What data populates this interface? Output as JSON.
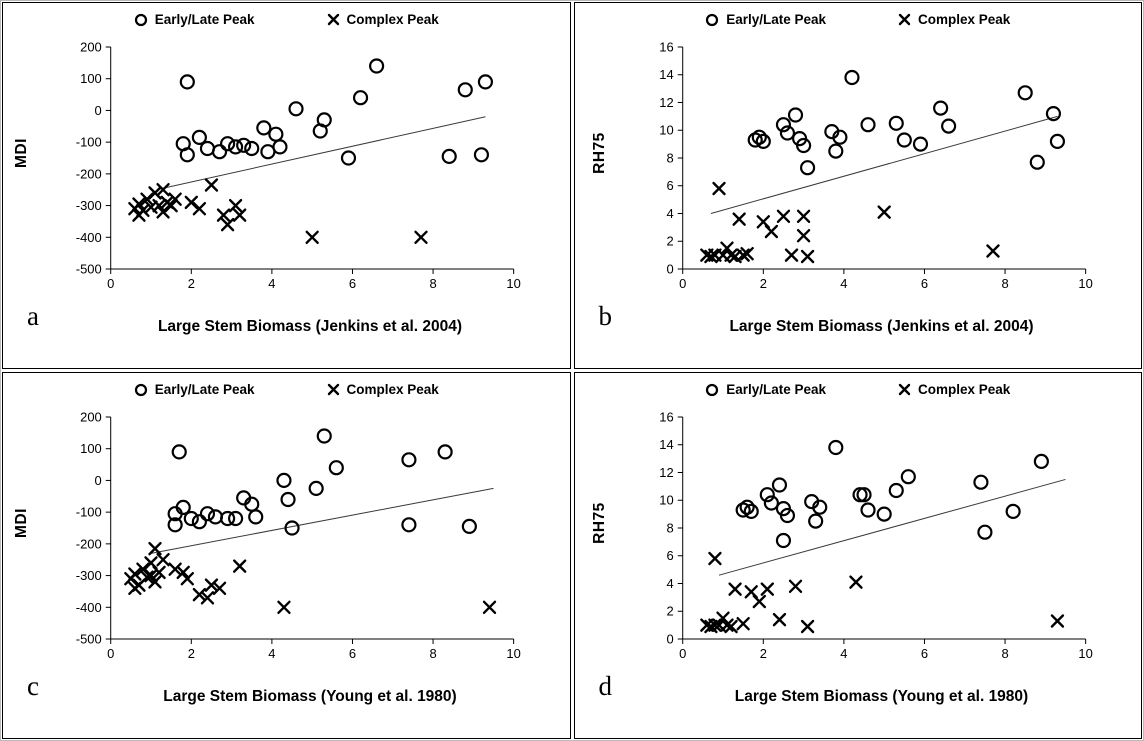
{
  "figure": {
    "background": "#ffffff",
    "panel_border": "#000000",
    "marker_color": "#000000",
    "trendline_color": "#3a3a3a"
  },
  "chart_data": [
    {
      "type": "scatter",
      "letter": "a",
      "xlabel": "Large Stem Biomass (Jenkins et al. 2004)",
      "ylabel": "MDI",
      "xlim": [
        0,
        10
      ],
      "ylim": [
        -500,
        200
      ],
      "xticks": [
        0,
        2,
        4,
        6,
        8,
        10
      ],
      "yticks": [
        200,
        100,
        0,
        -100,
        -200,
        -300,
        -400,
        -500
      ],
      "legend": [
        "Early/Late Peak",
        "Complex Peak"
      ],
      "grid": false,
      "series": [
        {
          "name": "Early/Late Peak",
          "marker": "circle",
          "points": [
            [
              1.9,
              90
            ],
            [
              6.6,
              140
            ],
            [
              6.2,
              40
            ],
            [
              4.6,
              5
            ],
            [
              8.8,
              65
            ],
            [
              9.3,
              90
            ],
            [
              5.3,
              -30
            ],
            [
              5.2,
              -65
            ],
            [
              3.8,
              -55
            ],
            [
              4.1,
              -75
            ],
            [
              3.5,
              -120
            ],
            [
              4.2,
              -115
            ],
            [
              2.2,
              -85
            ],
            [
              2.4,
              -120
            ],
            [
              1.8,
              -105
            ],
            [
              1.9,
              -140
            ],
            [
              2.9,
              -105
            ],
            [
              3.1,
              -115
            ],
            [
              2.7,
              -130
            ],
            [
              3.3,
              -110
            ],
            [
              3.9,
              -130
            ],
            [
              5.9,
              -150
            ],
            [
              8.4,
              -145
            ],
            [
              9.2,
              -140
            ]
          ]
        },
        {
          "name": "Complex Peak",
          "marker": "x",
          "points": [
            [
              0.6,
              -310
            ],
            [
              0.7,
              -295
            ],
            [
              0.7,
              -330
            ],
            [
              0.8,
              -315
            ],
            [
              0.9,
              -280
            ],
            [
              1.0,
              -305
            ],
            [
              1.1,
              -260
            ],
            [
              1.2,
              -300
            ],
            [
              1.3,
              -320
            ],
            [
              1.3,
              -250
            ],
            [
              1.4,
              -290
            ],
            [
              1.5,
              -300
            ],
            [
              1.6,
              -280
            ],
            [
              2.0,
              -290
            ],
            [
              2.2,
              -310
            ],
            [
              2.5,
              -235
            ],
            [
              2.8,
              -330
            ],
            [
              2.9,
              -360
            ],
            [
              3.1,
              -300
            ],
            [
              3.2,
              -330
            ],
            [
              5.0,
              -400
            ],
            [
              7.7,
              -400
            ]
          ]
        }
      ],
      "trendline": [
        [
          1.2,
          -248
        ],
        [
          9.3,
          -20
        ]
      ]
    },
    {
      "type": "scatter",
      "letter": "b",
      "xlabel": "Large Stem Biomass (Jenkins et al. 2004)",
      "ylabel": "RH75",
      "xlim": [
        0,
        10
      ],
      "ylim": [
        0,
        16
      ],
      "xticks": [
        0,
        2,
        4,
        6,
        8,
        10
      ],
      "yticks": [
        16,
        14,
        12,
        10,
        8,
        6,
        4,
        2,
        0
      ],
      "legend": [
        "Early/Late Peak",
        "Complex Peak"
      ],
      "grid": false,
      "series": [
        {
          "name": "Early/Late Peak",
          "marker": "circle",
          "points": [
            [
              1.8,
              9.3
            ],
            [
              1.9,
              9.5
            ],
            [
              2.0,
              9.2
            ],
            [
              2.5,
              10.4
            ],
            [
              2.6,
              9.8
            ],
            [
              2.8,
              11.1
            ],
            [
              2.9,
              9.4
            ],
            [
              3.0,
              8.9
            ],
            [
              3.1,
              7.3
            ],
            [
              3.7,
              9.9
            ],
            [
              3.8,
              8.5
            ],
            [
              3.9,
              9.5
            ],
            [
              4.2,
              13.8
            ],
            [
              4.6,
              10.4
            ],
            [
              5.3,
              10.5
            ],
            [
              5.5,
              9.3
            ],
            [
              5.9,
              9.0
            ],
            [
              6.4,
              11.6
            ],
            [
              6.6,
              10.3
            ],
            [
              8.5,
              12.7
            ],
            [
              8.8,
              7.7
            ],
            [
              9.2,
              11.2
            ],
            [
              9.3,
              9.2
            ]
          ]
        },
        {
          "name": "Complex Peak",
          "marker": "x",
          "points": [
            [
              0.6,
              1.0
            ],
            [
              0.7,
              0.9
            ],
            [
              0.8,
              1.0
            ],
            [
              0.9,
              5.8
            ],
            [
              1.0,
              1.0
            ],
            [
              1.1,
              1.5
            ],
            [
              1.2,
              1.0
            ],
            [
              1.3,
              0.9
            ],
            [
              1.4,
              3.6
            ],
            [
              1.5,
              1.0
            ],
            [
              1.6,
              1.1
            ],
            [
              2.0,
              3.4
            ],
            [
              2.2,
              2.7
            ],
            [
              2.5,
              3.8
            ],
            [
              2.7,
              1.0
            ],
            [
              3.0,
              3.8
            ],
            [
              3.0,
              2.4
            ],
            [
              3.1,
              0.9
            ],
            [
              5.0,
              4.1
            ],
            [
              7.7,
              1.3
            ]
          ]
        }
      ],
      "trendline": [
        [
          0.7,
          4.0
        ],
        [
          9.3,
          11.0
        ]
      ]
    },
    {
      "type": "scatter",
      "letter": "c",
      "xlabel": "Large Stem Biomass (Young et al. 1980)",
      "ylabel": "MDI",
      "xlim": [
        0,
        10
      ],
      "ylim": [
        -500,
        200
      ],
      "xticks": [
        0,
        2,
        4,
        6,
        8,
        10
      ],
      "yticks": [
        200,
        100,
        0,
        -100,
        -200,
        -300,
        -400,
        -500
      ],
      "legend": [
        "Early/Late Peak",
        "Complex Peak"
      ],
      "grid": false,
      "series": [
        {
          "name": "Early/Late Peak",
          "marker": "circle",
          "points": [
            [
              1.7,
              90
            ],
            [
              5.3,
              140
            ],
            [
              5.6,
              40
            ],
            [
              4.3,
              0
            ],
            [
              7.4,
              65
            ],
            [
              8.3,
              90
            ],
            [
              5.1,
              -25
            ],
            [
              4.4,
              -60
            ],
            [
              3.3,
              -55
            ],
            [
              3.5,
              -75
            ],
            [
              2.9,
              -120
            ],
            [
              3.6,
              -115
            ],
            [
              1.8,
              -85
            ],
            [
              2.0,
              -120
            ],
            [
              1.6,
              -105
            ],
            [
              1.6,
              -140
            ],
            [
              2.4,
              -105
            ],
            [
              2.6,
              -115
            ],
            [
              2.2,
              -130
            ],
            [
              3.1,
              -120
            ],
            [
              4.5,
              -150
            ],
            [
              7.4,
              -140
            ],
            [
              8.9,
              -145
            ]
          ]
        },
        {
          "name": "Complex Peak",
          "marker": "x",
          "points": [
            [
              0.5,
              -310
            ],
            [
              0.6,
              -295
            ],
            [
              0.6,
              -340
            ],
            [
              0.7,
              -330
            ],
            [
              0.8,
              -280
            ],
            [
              0.9,
              -305
            ],
            [
              1.0,
              -260
            ],
            [
              1.0,
              -300
            ],
            [
              1.1,
              -320
            ],
            [
              1.1,
              -215
            ],
            [
              1.2,
              -290
            ],
            [
              1.3,
              -250
            ],
            [
              1.6,
              -280
            ],
            [
              1.8,
              -290
            ],
            [
              1.9,
              -310
            ],
            [
              2.2,
              -360
            ],
            [
              2.4,
              -370
            ],
            [
              2.5,
              -330
            ],
            [
              2.7,
              -340
            ],
            [
              3.2,
              -270
            ],
            [
              4.3,
              -400
            ],
            [
              9.4,
              -400
            ]
          ]
        }
      ],
      "trendline": [
        [
          1.0,
          -230
        ],
        [
          9.5,
          -25
        ]
      ]
    },
    {
      "type": "scatter",
      "letter": "d",
      "xlabel": "Large Stem Biomass (Young et al. 1980)",
      "ylabel": "RH75",
      "xlim": [
        0,
        10
      ],
      "ylim": [
        0,
        16
      ],
      "xticks": [
        0,
        2,
        4,
        6,
        8,
        10
      ],
      "yticks": [
        16,
        14,
        12,
        10,
        8,
        6,
        4,
        2,
        0
      ],
      "legend": [
        "Early/Late Peak",
        "Complex Peak"
      ],
      "grid": false,
      "series": [
        {
          "name": "Early/Late Peak",
          "marker": "circle",
          "points": [
            [
              1.5,
              9.3
            ],
            [
              1.6,
              9.5
            ],
            [
              1.7,
              9.2
            ],
            [
              2.1,
              10.4
            ],
            [
              2.2,
              9.8
            ],
            [
              2.4,
              11.1
            ],
            [
              2.5,
              9.4
            ],
            [
              2.6,
              8.9
            ],
            [
              2.5,
              7.1
            ],
            [
              3.2,
              9.9
            ],
            [
              3.3,
              8.5
            ],
            [
              3.4,
              9.5
            ],
            [
              3.8,
              13.8
            ],
            [
              4.4,
              10.4
            ],
            [
              4.5,
              10.4
            ],
            [
              4.6,
              9.3
            ],
            [
              5.0,
              9.0
            ],
            [
              5.3,
              10.7
            ],
            [
              5.6,
              11.7
            ],
            [
              7.4,
              11.3
            ],
            [
              7.5,
              7.7
            ],
            [
              8.2,
              9.2
            ],
            [
              8.9,
              12.8
            ]
          ]
        },
        {
          "name": "Complex Peak",
          "marker": "x",
          "points": [
            [
              0.6,
              1.0
            ],
            [
              0.7,
              0.9
            ],
            [
              0.8,
              1.0
            ],
            [
              0.8,
              5.8
            ],
            [
              0.9,
              1.0
            ],
            [
              1.0,
              1.5
            ],
            [
              1.1,
              1.0
            ],
            [
              1.2,
              0.9
            ],
            [
              1.3,
              3.6
            ],
            [
              1.5,
              1.1
            ],
            [
              1.7,
              3.4
            ],
            [
              1.9,
              2.7
            ],
            [
              2.1,
              3.6
            ],
            [
              2.4,
              1.4
            ],
            [
              2.8,
              3.8
            ],
            [
              3.1,
              0.9
            ],
            [
              4.3,
              4.1
            ],
            [
              9.3,
              1.3
            ]
          ]
        }
      ],
      "trendline": [
        [
          0.9,
          4.6
        ],
        [
          9.5,
          11.5
        ]
      ]
    }
  ]
}
